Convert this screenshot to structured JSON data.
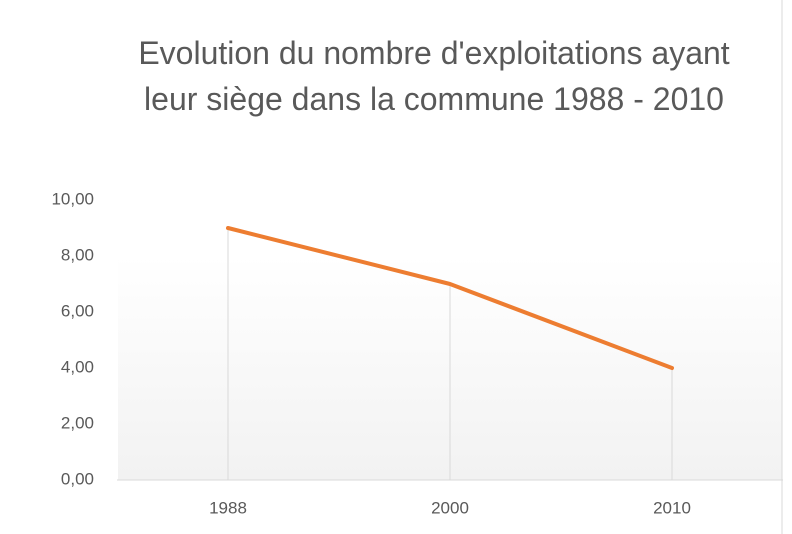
{
  "chart_data": {
    "type": "line",
    "title": "Evolution du nombre d'exploitations ayant leur siège dans la commune 1988 - 2010",
    "categories": [
      "1988",
      "2000",
      "2010"
    ],
    "values": [
      9,
      7,
      4
    ],
    "color": "#ed7d31",
    "ylim": [
      0,
      10
    ],
    "yticks": [
      {
        "value": 0,
        "label": "0,00"
      },
      {
        "value": 2,
        "label": "2,00"
      },
      {
        "value": 4,
        "label": "4,00"
      },
      {
        "value": 6,
        "label": "6,00"
      },
      {
        "value": 8,
        "label": "8,00"
      },
      {
        "value": 10,
        "label": "10,00"
      }
    ],
    "drop_lines": true
  }
}
